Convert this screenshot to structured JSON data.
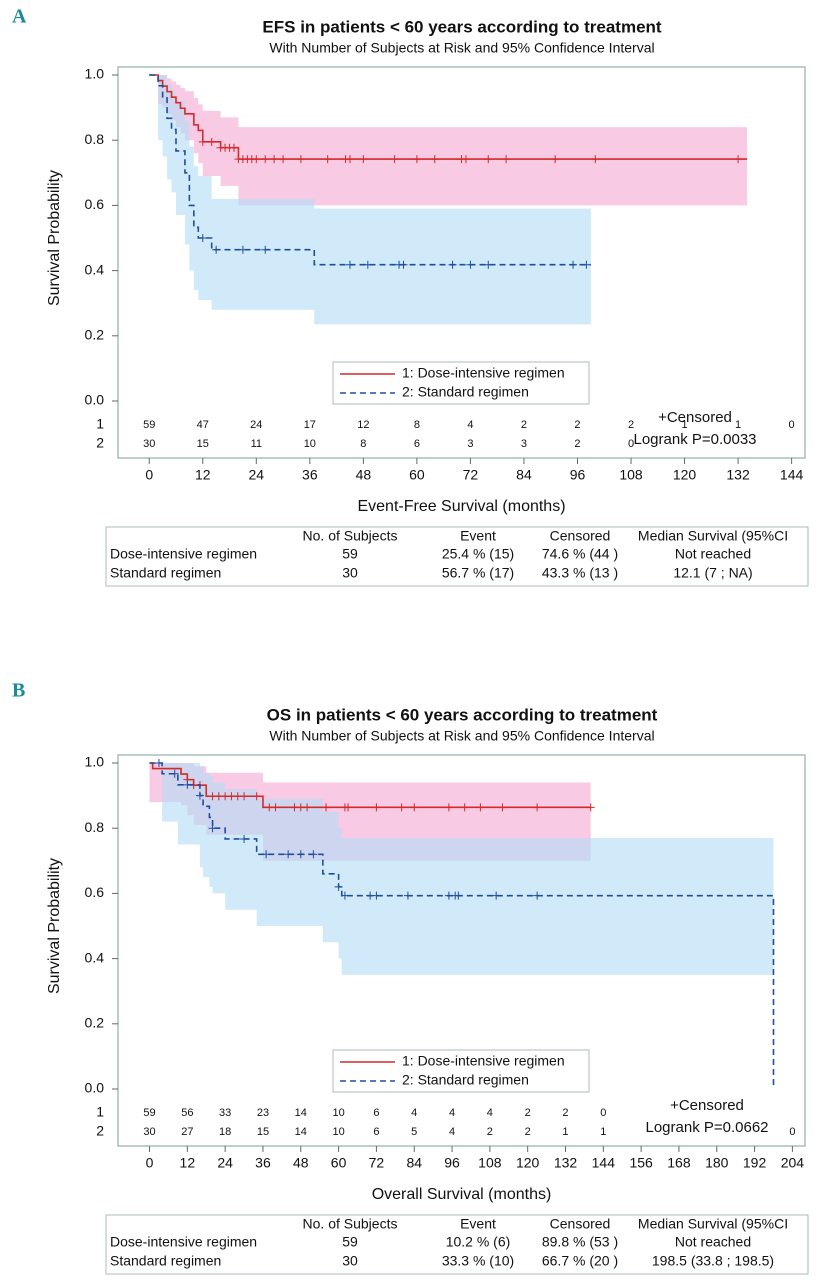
{
  "panel_labels": [
    "A",
    "B"
  ],
  "chart_data": [
    {
      "type": "kaplan-meier",
      "title": "EFS in patients < 60 years according to treatment",
      "subtitle": "With Number of Subjects at Risk and 95% Confidence Interval",
      "x_label": "Event-Free Survival (months)",
      "y_label": "Survival Probability",
      "xlim": [
        -7,
        147
      ],
      "xticks": [
        0,
        12,
        24,
        36,
        48,
        60,
        72,
        84,
        96,
        108,
        120,
        132,
        144
      ],
      "ylim": [
        0,
        1
      ],
      "yticks": [
        {
          "value": 0,
          "label": "0.0"
        },
        0.2,
        0.4,
        0.6,
        0.8,
        {
          "value": 1,
          "label": "1.0"
        }
      ],
      "series": [
        {
          "name": "1: Dose-intensive regimen",
          "color": "#d42a2a",
          "line_style": "solid",
          "band_color": "#f3a6d2",
          "x": [
            0,
            2,
            3,
            4,
            5,
            6,
            7,
            8,
            10,
            11,
            12,
            16,
            20,
            134
          ],
          "values": [
            1,
            0.983,
            0.966,
            0.949,
            0.932,
            0.915,
            0.898,
            0.881,
            0.847,
            0.83,
            0.795,
            0.777,
            0.742,
            0.742
          ],
          "ci_upper": [
            1,
            1,
            1,
            0.99,
            0.98,
            0.97,
            0.96,
            0.95,
            0.93,
            0.91,
            0.89,
            0.87,
            0.84,
            0.84
          ],
          "ci_lower": [
            1,
            0.91,
            0.9,
            0.88,
            0.86,
            0.84,
            0.82,
            0.8,
            0.76,
            0.73,
            0.69,
            0.66,
            0.6,
            0.6
          ],
          "censored": [
            12,
            14,
            16,
            17,
            18,
            19,
            20,
            21,
            22,
            23,
            24,
            26,
            28,
            30,
            34,
            40,
            44,
            45,
            48,
            55,
            60,
            64,
            70,
            71,
            76,
            80,
            91,
            100,
            132
          ]
        },
        {
          "name": "2: Standard regimen",
          "color": "#1f4e9c",
          "line_style": "dashed",
          "band_color": "#b3dcf5",
          "x": [
            0,
            2,
            3,
            4,
            5,
            6,
            8,
            9,
            10,
            11,
            14,
            37,
            99
          ],
          "values": [
            1,
            0.967,
            0.933,
            0.867,
            0.833,
            0.767,
            0.7,
            0.6,
            0.533,
            0.5,
            0.464,
            0.418,
            0.418
          ],
          "ci_upper": [
            1,
            1,
            1,
            0.97,
            0.95,
            0.92,
            0.86,
            0.78,
            0.72,
            0.69,
            0.62,
            0.59,
            0.59
          ],
          "ci_lower": [
            1,
            0.8,
            0.75,
            0.68,
            0.64,
            0.57,
            0.48,
            0.4,
            0.34,
            0.31,
            0.28,
            0.235,
            0.235
          ],
          "censored": [
            12,
            15,
            21,
            26,
            45,
            49,
            56,
            57,
            68,
            72,
            76,
            95,
            98
          ]
        }
      ],
      "at_risk": [
        {
          "label": "1",
          "values": [
            59,
            47,
            24,
            17,
            12,
            8,
            4,
            2,
            2,
            2,
            1,
            1,
            0
          ]
        },
        {
          "label": "2",
          "values": [
            30,
            15,
            11,
            10,
            8,
            6,
            3,
            3,
            2,
            0,
            null,
            null,
            null
          ]
        }
      ],
      "annotations": [
        "+Censored",
        "Logrank P=0.0033"
      ]
    },
    {
      "type": "kaplan-meier",
      "title": "OS in patients < 60 years according to treatment",
      "subtitle": "With Number of Subjects at Risk and 95% Confidence Interval",
      "x_label": "Overall Survival (months)",
      "y_label": "Survival Probability",
      "xlim": [
        -10,
        208
      ],
      "xticks": [
        0,
        12,
        24,
        36,
        48,
        60,
        72,
        84,
        96,
        108,
        120,
        132,
        144,
        156,
        168,
        180,
        192,
        204
      ],
      "ylim": [
        0,
        1
      ],
      "yticks": [
        {
          "value": 0,
          "label": "0.0"
        },
        0.2,
        0.4,
        0.6,
        0.8,
        {
          "value": 1,
          "label": "1.0"
        }
      ],
      "series": [
        {
          "name": "1: Dose-intensive regimen",
          "color": "#d42a2a",
          "line_style": "solid",
          "band_color": "#f3a6d2",
          "x": [
            0,
            1,
            10,
            12,
            14,
            18,
            36,
            140
          ],
          "values": [
            1,
            0.983,
            0.966,
            0.949,
            0.932,
            0.898,
            0.864,
            0.864
          ],
          "ci_upper": [
            1,
            1,
            1,
            1,
            0.99,
            0.97,
            0.94,
            0.94
          ],
          "ci_lower": [
            0.88,
            0.88,
            0.87,
            0.84,
            0.81,
            0.78,
            0.7,
            0.7
          ],
          "censored": [
            12,
            14,
            16,
            20,
            22,
            24,
            26,
            28,
            30,
            34,
            38,
            40,
            46,
            48,
            50,
            56,
            62,
            63,
            72,
            80,
            84,
            95,
            100,
            105,
            112,
            123,
            140
          ]
        },
        {
          "name": "2: Standard regimen",
          "color": "#1f4e9c",
          "line_style": "dashed",
          "band_color": "#b3dcf5",
          "x": [
            0,
            4,
            9,
            16,
            17,
            19,
            20,
            24,
            34,
            55,
            60,
            61,
            198,
            198
          ],
          "values": [
            1,
            0.967,
            0.933,
            0.9,
            0.867,
            0.833,
            0.8,
            0.767,
            0.72,
            0.66,
            0.62,
            0.593,
            0.593,
            0
          ],
          "ci_upper": [
            1,
            1,
            1,
            0.99,
            0.97,
            0.96,
            0.94,
            0.92,
            0.89,
            0.85,
            0.8,
            0.77,
            0.77,
            0.77
          ],
          "ci_lower": [
            1,
            0.82,
            0.75,
            0.68,
            0.65,
            0.62,
            0.6,
            0.55,
            0.5,
            0.45,
            0.4,
            0.35,
            0.35,
            0.35
          ],
          "censored": [
            3,
            8,
            12,
            16,
            20,
            30,
            37,
            44,
            48,
            52,
            60,
            62,
            70,
            72,
            82,
            95,
            97,
            98,
            110,
            123
          ]
        }
      ],
      "at_risk": [
        {
          "label": "1",
          "values": [
            59,
            56,
            33,
            23,
            14,
            10,
            6,
            4,
            4,
            4,
            2,
            2,
            0,
            null,
            null,
            null,
            null,
            null
          ]
        },
        {
          "label": "2",
          "values": [
            30,
            27,
            18,
            15,
            14,
            10,
            6,
            5,
            4,
            2,
            2,
            1,
            1,
            null,
            null,
            null,
            null,
            0
          ]
        }
      ],
      "annotations": [
        "+Censored",
        "Logrank P=0.0662"
      ]
    }
  ],
  "tables": [
    {
      "header": [
        "No. of Subjects",
        "Event",
        "Censored",
        "Median Survival (95%CI"
      ],
      "rows": [
        [
          "Dose-intensive regimen",
          "59",
          "25.4 % (15)",
          "74.6 % (44 )",
          "Not reached"
        ],
        [
          "Standard regimen",
          "30",
          "56.7 % (17)",
          "43.3 % (13 )",
          "12.1 (7 ; NA)"
        ]
      ]
    },
    {
      "header": [
        "No. of Subjects",
        "Event",
        "Censored",
        "Median Survival (95%CI"
      ],
      "rows": [
        [
          "Dose-intensive regimen",
          "59",
          "10.2 % (6)",
          "89.8 % (53 )",
          "Not reached"
        ],
        [
          "Standard regimen",
          "30",
          "33.3 % (10)",
          "66.7 % (20 )",
          "198.5 (33.8 ; 198.5)"
        ]
      ]
    }
  ]
}
